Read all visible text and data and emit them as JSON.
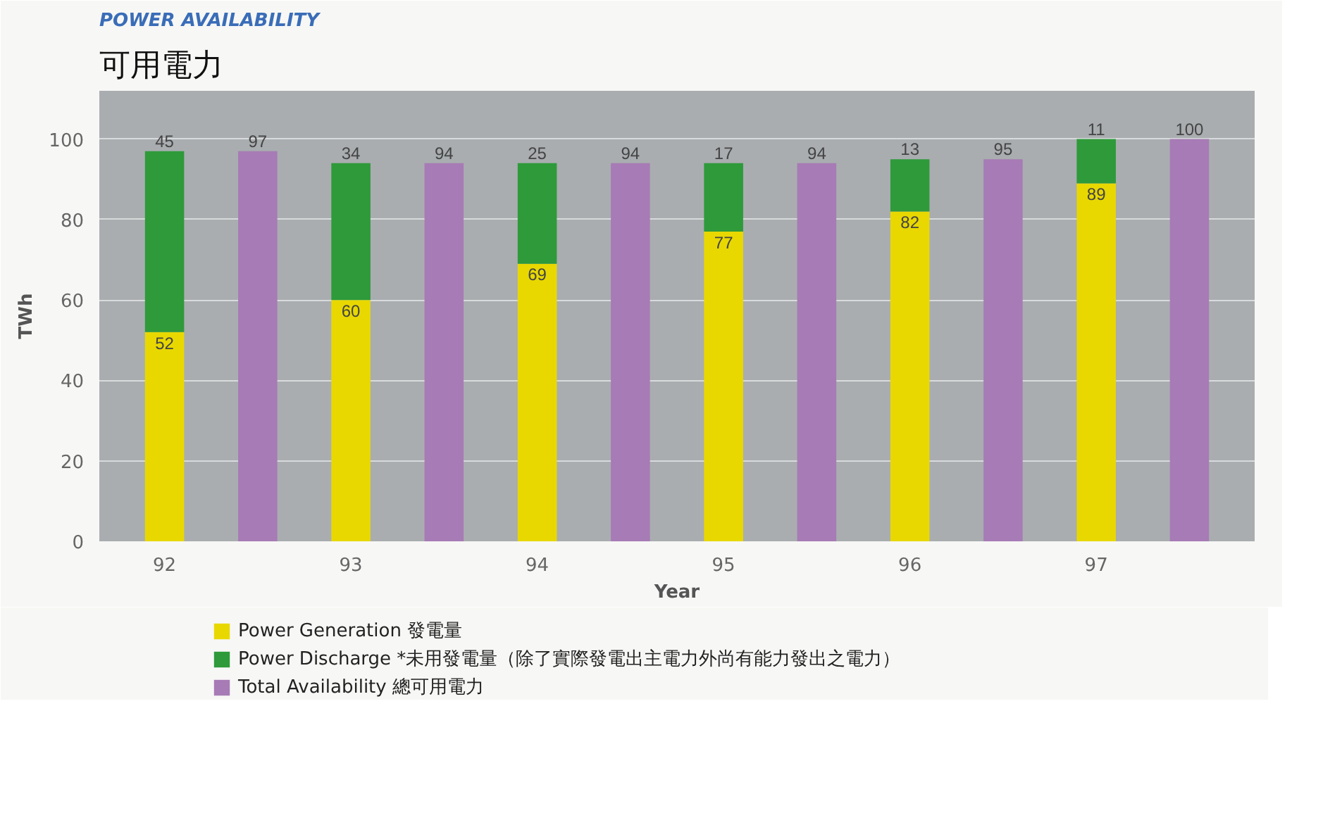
{
  "chart_data": {
    "type": "bar",
    "title": "POWER AVAILABILITY",
    "subtitle": "可用電力",
    "xlabel": "Year",
    "ylabel": "TWh",
    "categories": [
      "92",
      null,
      "93",
      null,
      "94",
      null,
      "95",
      null,
      "96",
      null,
      "97",
      null
    ],
    "series": [
      {
        "name": "Power Generation 發電量",
        "color": "#e8d800",
        "values": [
          52,
          null,
          60,
          null,
          69,
          null,
          77,
          null,
          82,
          null,
          89,
          null
        ]
      },
      {
        "name": "Power Discharge *未用發電量（除了實際發電出主電力外尚有能力發出之電力）",
        "color": "#2e9a3a",
        "values": [
          45,
          null,
          34,
          null,
          25,
          null,
          17,
          null,
          13,
          null,
          11,
          null
        ]
      },
      {
        "name": "Total Availability 總可用電力",
        "color": "#a77bb5",
        "values": [
          null,
          97,
          null,
          94,
          null,
          94,
          null,
          94,
          null,
          95,
          null,
          100
        ]
      }
    ],
    "stacked": true,
    "ylim": [
      0,
      112
    ],
    "yticks": [
      0,
      20,
      40,
      60,
      80,
      100
    ],
    "grid": "y",
    "legend": "bottom",
    "data_labels": true
  }
}
